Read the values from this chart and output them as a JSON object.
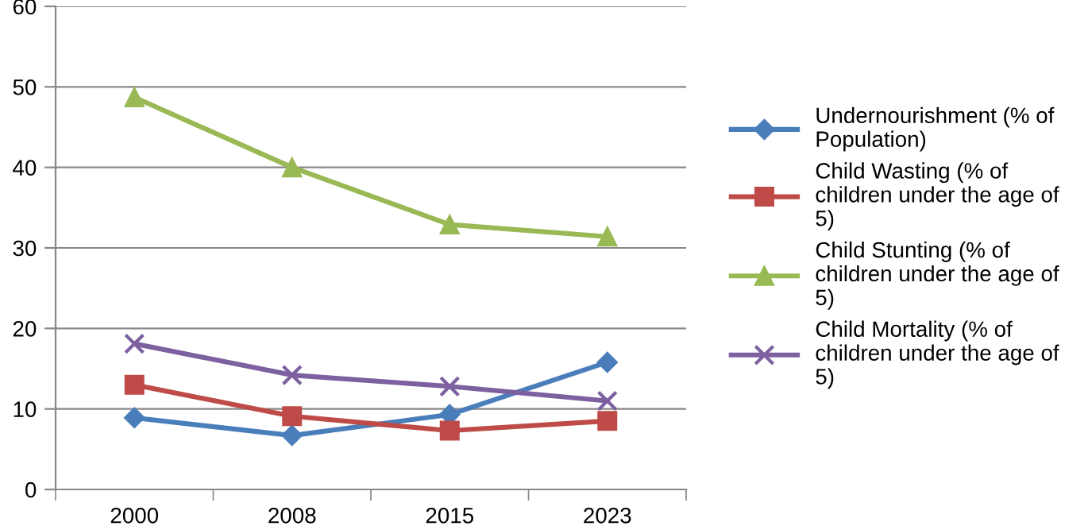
{
  "chart_data": {
    "type": "line",
    "categories": [
      "2000",
      "2008",
      "2015",
      "2023"
    ],
    "series": [
      {
        "name": "Undernourishment (% of Population)",
        "color": "#4a7ebb",
        "marker": "diamond",
        "values": [
          8.9,
          6.7,
          9.3,
          15.8
        ]
      },
      {
        "name": "Child Wasting (% of children under the age of 5)",
        "color": "#be4b48",
        "marker": "square",
        "values": [
          13.0,
          9.1,
          7.3,
          8.5
        ]
      },
      {
        "name": "Child Stunting (% of children under the age of 5)",
        "color": "#98b954",
        "marker": "triangle",
        "values": [
          48.7,
          40.0,
          32.9,
          31.4
        ]
      },
      {
        "name": "Child Mortality (% of children under the age of 5)",
        "color": "#7d60a0",
        "marker": "cross",
        "values": [
          18.1,
          14.2,
          12.8,
          11.0
        ]
      }
    ],
    "ylim": [
      0,
      60
    ],
    "yticks": [
      0,
      10,
      20,
      30,
      40,
      50,
      60
    ],
    "grid": "y",
    "legend": "right",
    "line_style": "solid"
  }
}
